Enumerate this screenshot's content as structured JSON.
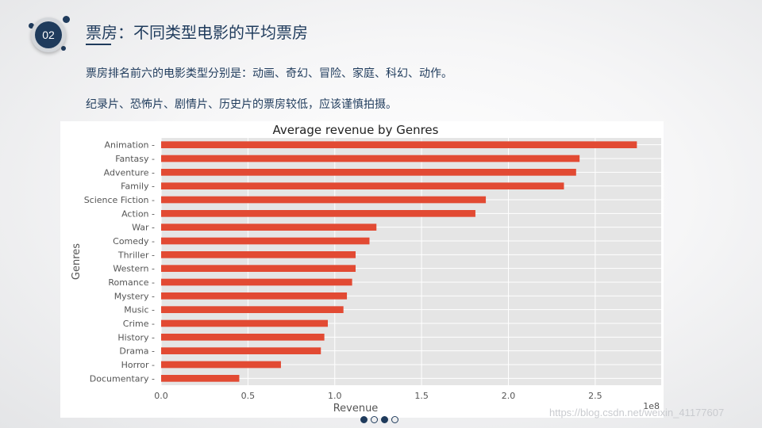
{
  "slide": {
    "badge_number": "02",
    "title": "票房：不同类型电影的平均票房",
    "paragraph1": "票房排名前六的电影类型分别是：动画、奇幻、冒险、家庭、科幻、动作。",
    "paragraph2": "纪录片、恐怖片、剧情片、历史片的票房较低，应该谨慎拍摄。",
    "pager": [
      true,
      false,
      true,
      false
    ],
    "watermark": "https://blog.csdn.net/weixin_41177607"
  },
  "colors": {
    "accent": "#1f3b5c",
    "bar": "#e24a33",
    "plot_bg": "#e5e5e5"
  },
  "chart_data": {
    "type": "bar",
    "orientation": "horizontal",
    "title": "Average revenue by Genres",
    "xlabel": "Revenue",
    "ylabel": "Genres",
    "x_offset_label": "1e8",
    "xlim": [
      0,
      2.88
    ],
    "xticks": [
      0.0,
      0.5,
      1.0,
      1.5,
      2.0,
      2.5
    ],
    "xtick_labels": [
      "0.0",
      "0.5",
      "1.0",
      "1.5",
      "2.0",
      "2.5"
    ],
    "grid": true,
    "categories": [
      "Animation",
      "Fantasy",
      "Adventure",
      "Family",
      "Science Fiction",
      "Action",
      "War",
      "Comedy",
      "Thriller",
      "Western",
      "Romance",
      "Mystery",
      "Music",
      "Crime",
      "History",
      "Drama",
      "Horror",
      "Documentary"
    ],
    "values": [
      2.74,
      2.41,
      2.39,
      2.32,
      1.87,
      1.81,
      1.24,
      1.2,
      1.12,
      1.12,
      1.1,
      1.07,
      1.05,
      0.96,
      0.94,
      0.92,
      0.69,
      0.45
    ]
  }
}
